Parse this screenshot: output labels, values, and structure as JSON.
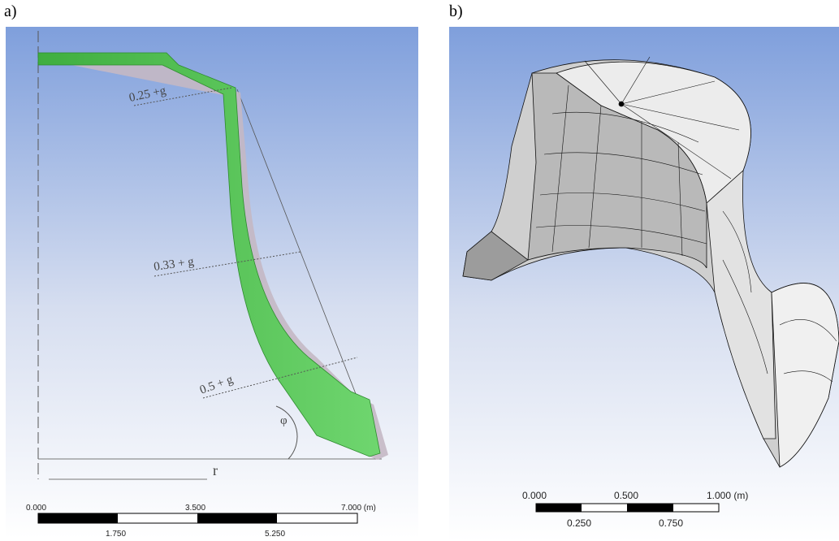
{
  "panels": [
    {
      "label": "a)",
      "annotations": [
        "0.25 +g",
        "0.33 + g",
        "0.5 + g",
        "φ",
        "r"
      ],
      "scale_bar": {
        "top_labels": [
          "0.000",
          "3.500",
          "7.000 (m)"
        ],
        "bottom_labels": [
          "1.750",
          "5.250"
        ]
      }
    },
    {
      "label": "b)",
      "scale_bar": {
        "top_labels": [
          "0.000",
          "0.500",
          "1.000 (m)"
        ],
        "bottom_labels": [
          "0.250",
          "0.750"
        ]
      }
    }
  ]
}
